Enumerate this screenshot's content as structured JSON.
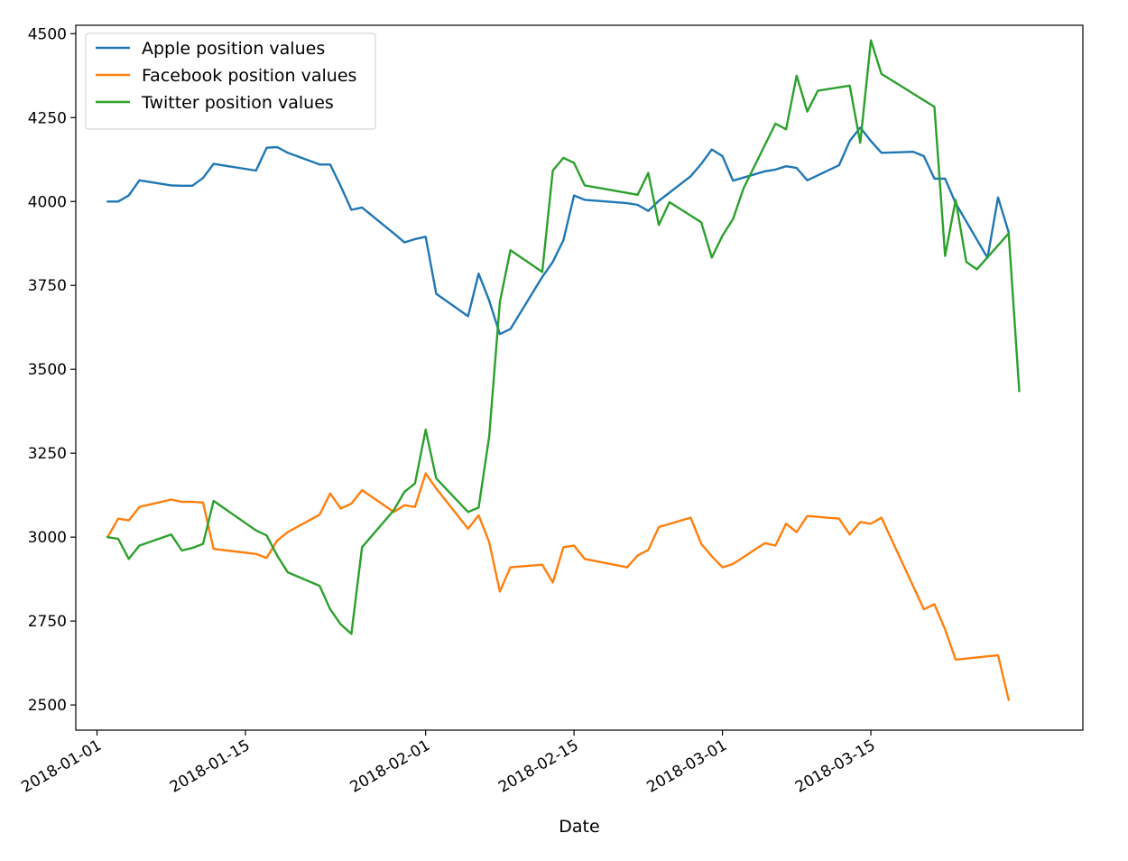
{
  "chart_data": {
    "type": "line",
    "title": "",
    "xlabel": "Date",
    "ylabel": "",
    "xlim": [
      "2017-12-30",
      "2018-04-04"
    ],
    "ylim": [
      2425,
      4525
    ],
    "x_ticks": [
      "2018-01-01",
      "2018-01-15",
      "2018-02-01",
      "2018-02-15",
      "2018-03-01",
      "2018-03-15"
    ],
    "y_ticks": [
      2500,
      2750,
      3000,
      3250,
      3500,
      3750,
      4000,
      4250,
      4500
    ],
    "grid": false,
    "legend_position": "top-left",
    "series": [
      {
        "name": "Apple position values",
        "color": "#1f77b4",
        "points": [
          [
            "2018-01-02",
            4000
          ],
          [
            "2018-01-03",
            4000
          ],
          [
            "2018-01-04",
            4018
          ],
          [
            "2018-01-05",
            4063
          ],
          [
            "2018-01-08",
            4048
          ],
          [
            "2018-01-09",
            4047
          ],
          [
            "2018-01-10",
            4047
          ],
          [
            "2018-01-11",
            4070
          ],
          [
            "2018-01-12",
            4112
          ],
          [
            "2018-01-16",
            4092
          ],
          [
            "2018-01-17",
            4160
          ],
          [
            "2018-01-18",
            4162
          ],
          [
            "2018-01-19",
            4145
          ],
          [
            "2018-01-22",
            4110
          ],
          [
            "2018-01-23",
            4110
          ],
          [
            "2018-01-24",
            4045
          ],
          [
            "2018-01-25",
            3975
          ],
          [
            "2018-01-26",
            3982
          ],
          [
            "2018-01-29",
            3905
          ],
          [
            "2018-01-30",
            3878
          ],
          [
            "2018-01-31",
            3888
          ],
          [
            "2018-02-01",
            3895
          ],
          [
            "2018-02-02",
            3725
          ],
          [
            "2018-02-05",
            3658
          ],
          [
            "2018-02-06",
            3785
          ],
          [
            "2018-02-07",
            3705
          ],
          [
            "2018-02-08",
            3605
          ],
          [
            "2018-02-09",
            3620
          ],
          [
            "2018-02-12",
            3775
          ],
          [
            "2018-02-13",
            3820
          ],
          [
            "2018-02-14",
            3885
          ],
          [
            "2018-02-15",
            4018
          ],
          [
            "2018-02-16",
            4005
          ],
          [
            "2018-02-20",
            3995
          ],
          [
            "2018-02-21",
            3990
          ],
          [
            "2018-02-22",
            3972
          ],
          [
            "2018-02-23",
            4002
          ],
          [
            "2018-02-26",
            4075
          ],
          [
            "2018-02-27",
            4112
          ],
          [
            "2018-02-28",
            4155
          ],
          [
            "2018-03-01",
            4135
          ],
          [
            "2018-03-02",
            4062
          ],
          [
            "2018-03-05",
            4090
          ],
          [
            "2018-03-06",
            4095
          ],
          [
            "2018-03-07",
            4105
          ],
          [
            "2018-03-08",
            4100
          ],
          [
            "2018-03-09",
            4063
          ],
          [
            "2018-03-12",
            4108
          ],
          [
            "2018-03-13",
            4180
          ],
          [
            "2018-03-14",
            4220
          ],
          [
            "2018-03-15",
            4180
          ],
          [
            "2018-03-16",
            4145
          ],
          [
            "2018-03-19",
            4148
          ],
          [
            "2018-03-20",
            4135
          ],
          [
            "2018-03-21",
            4068
          ],
          [
            "2018-03-22",
            4068
          ],
          [
            "2018-03-23",
            3995
          ],
          [
            "2018-03-26",
            3832
          ],
          [
            "2018-03-27",
            4012
          ],
          [
            "2018-03-28",
            3908
          ]
        ]
      },
      {
        "name": "Facebook position values",
        "color": "#ff7f0e",
        "points": [
          [
            "2018-01-02",
            3000
          ],
          [
            "2018-01-03",
            3055
          ],
          [
            "2018-01-04",
            3050
          ],
          [
            "2018-01-05",
            3090
          ],
          [
            "2018-01-08",
            3112
          ],
          [
            "2018-01-09",
            3105
          ],
          [
            "2018-01-10",
            3105
          ],
          [
            "2018-01-11",
            3103
          ],
          [
            "2018-01-12",
            2965
          ],
          [
            "2018-01-16",
            2950
          ],
          [
            "2018-01-17",
            2938
          ],
          [
            "2018-01-18",
            2990
          ],
          [
            "2018-01-19",
            3015
          ],
          [
            "2018-01-22",
            3067
          ],
          [
            "2018-01-23",
            3130
          ],
          [
            "2018-01-24",
            3085
          ],
          [
            "2018-01-25",
            3100
          ],
          [
            "2018-01-26",
            3140
          ],
          [
            "2018-01-29",
            3075
          ],
          [
            "2018-01-30",
            3095
          ],
          [
            "2018-01-31",
            3090
          ],
          [
            "2018-02-01",
            3190
          ],
          [
            "2018-02-02",
            3145
          ],
          [
            "2018-02-05",
            3025
          ],
          [
            "2018-02-06",
            3065
          ],
          [
            "2018-02-07",
            2985
          ],
          [
            "2018-02-08",
            2838
          ],
          [
            "2018-02-09",
            2910
          ],
          [
            "2018-02-12",
            2918
          ],
          [
            "2018-02-13",
            2865
          ],
          [
            "2018-02-14",
            2970
          ],
          [
            "2018-02-15",
            2975
          ],
          [
            "2018-02-16",
            2935
          ],
          [
            "2018-02-20",
            2910
          ],
          [
            "2018-02-21",
            2945
          ],
          [
            "2018-02-22",
            2962
          ],
          [
            "2018-02-23",
            3030
          ],
          [
            "2018-02-26",
            3058
          ],
          [
            "2018-02-27",
            2980
          ],
          [
            "2018-02-28",
            2943
          ],
          [
            "2018-03-01",
            2910
          ],
          [
            "2018-03-02",
            2920
          ],
          [
            "2018-03-05",
            2982
          ],
          [
            "2018-03-06",
            2975
          ],
          [
            "2018-03-07",
            3040
          ],
          [
            "2018-03-08",
            3015
          ],
          [
            "2018-03-09",
            3063
          ],
          [
            "2018-03-12",
            3055
          ],
          [
            "2018-03-13",
            3008
          ],
          [
            "2018-03-14",
            3045
          ],
          [
            "2018-03-15",
            3040
          ],
          [
            "2018-03-16",
            3058
          ],
          [
            "2018-03-20",
            2785
          ],
          [
            "2018-03-21",
            2800
          ],
          [
            "2018-03-22",
            2725
          ],
          [
            "2018-03-23",
            2635
          ],
          [
            "2018-03-26",
            2645
          ],
          [
            "2018-03-27",
            2648
          ],
          [
            "2018-03-28",
            2515
          ]
        ]
      },
      {
        "name": "Twitter position values",
        "color": "#2ca02c",
        "points": [
          [
            "2018-01-02",
            3000
          ],
          [
            "2018-01-03",
            2995
          ],
          [
            "2018-01-04",
            2935
          ],
          [
            "2018-01-05",
            2975
          ],
          [
            "2018-01-08",
            3008
          ],
          [
            "2018-01-09",
            2960
          ],
          [
            "2018-01-10",
            2968
          ],
          [
            "2018-01-11",
            2980
          ],
          [
            "2018-01-12",
            3108
          ],
          [
            "2018-01-16",
            3020
          ],
          [
            "2018-01-17",
            3005
          ],
          [
            "2018-01-18",
            2945
          ],
          [
            "2018-01-19",
            2895
          ],
          [
            "2018-01-22",
            2855
          ],
          [
            "2018-01-23",
            2785
          ],
          [
            "2018-01-24",
            2740
          ],
          [
            "2018-01-25",
            2712
          ],
          [
            "2018-01-26",
            2970
          ],
          [
            "2018-01-29",
            3080
          ],
          [
            "2018-01-30",
            3135
          ],
          [
            "2018-01-31",
            3160
          ],
          [
            "2018-02-01",
            3320
          ],
          [
            "2018-02-02",
            3175
          ],
          [
            "2018-02-05",
            3075
          ],
          [
            "2018-02-06",
            3088
          ],
          [
            "2018-02-07",
            3300
          ],
          [
            "2018-02-08",
            3700
          ],
          [
            "2018-02-09",
            3855
          ],
          [
            "2018-02-12",
            3790
          ],
          [
            "2018-02-13",
            4092
          ],
          [
            "2018-02-14",
            4130
          ],
          [
            "2018-02-15",
            4115
          ],
          [
            "2018-02-16",
            4048
          ],
          [
            "2018-02-21",
            4020
          ],
          [
            "2018-02-22",
            4085
          ],
          [
            "2018-02-23",
            3930
          ],
          [
            "2018-02-24",
            3998
          ],
          [
            "2018-02-27",
            3938
          ],
          [
            "2018-02-28",
            3833
          ],
          [
            "2018-03-01",
            3898
          ],
          [
            "2018-03-02",
            3948
          ],
          [
            "2018-03-03",
            4040
          ],
          [
            "2018-03-06",
            4232
          ],
          [
            "2018-03-07",
            4215
          ],
          [
            "2018-03-08",
            4375
          ],
          [
            "2018-03-09",
            4268
          ],
          [
            "2018-03-10",
            4330
          ],
          [
            "2018-03-13",
            4345
          ],
          [
            "2018-03-14",
            4175
          ],
          [
            "2018-03-15",
            4480
          ],
          [
            "2018-03-16",
            4380
          ],
          [
            "2018-03-21",
            4282
          ],
          [
            "2018-03-22",
            3838
          ],
          [
            "2018-03-23",
            4005
          ],
          [
            "2018-03-24",
            3820
          ],
          [
            "2018-03-25",
            3798
          ],
          [
            "2018-03-28",
            3905
          ],
          [
            "2018-03-29",
            3435
          ]
        ]
      }
    ]
  }
}
